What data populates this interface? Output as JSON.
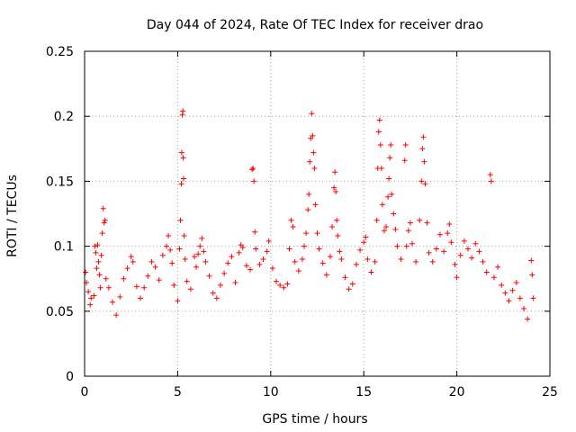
{
  "chart_data": {
    "type": "scatter",
    "title": "Day 044 of 2024, Rate Of TEC Index for receiver drao",
    "xlabel": "GPS time / hours",
    "ylabel": "ROTI / TECUs",
    "xlim": [
      0,
      25
    ],
    "ylim": [
      0,
      0.25
    ],
    "x_ticks": [
      "0",
      "5",
      "10",
      "15",
      "20",
      "25"
    ],
    "y_ticks": [
      "0",
      "0.05",
      "0.1",
      "0.15",
      "0.2",
      "0.25"
    ],
    "grid": true,
    "marker": "plus",
    "series_color": "#ff0000",
    "series": [
      {
        "points": [
          [
            0.05,
            0.08
          ],
          [
            0.1,
            0.072
          ],
          [
            0.2,
            0.065
          ],
          [
            0.3,
            0.055
          ],
          [
            0.35,
            0.06
          ],
          [
            0.5,
            0.062
          ],
          [
            0.55,
            0.1
          ],
          [
            0.6,
            0.095
          ],
          [
            0.65,
            0.083
          ],
          [
            0.7,
            0.101
          ],
          [
            0.75,
            0.088
          ],
          [
            0.8,
            0.078
          ],
          [
            0.85,
            0.068
          ],
          [
            0.9,
            0.093
          ],
          [
            0.95,
            0.11
          ],
          [
            1.0,
            0.129
          ],
          [
            1.05,
            0.118
          ],
          [
            1.1,
            0.12
          ],
          [
            1.15,
            0.075
          ],
          [
            1.3,
            0.068
          ],
          [
            1.5,
            0.057
          ],
          [
            1.7,
            0.047
          ],
          [
            1.9,
            0.061
          ],
          [
            2.1,
            0.075
          ],
          [
            2.3,
            0.083
          ],
          [
            2.5,
            0.092
          ],
          [
            2.6,
            0.088
          ],
          [
            2.8,
            0.069
          ],
          [
            3.0,
            0.06
          ],
          [
            3.2,
            0.068
          ],
          [
            3.4,
            0.077
          ],
          [
            3.6,
            0.088
          ],
          [
            3.8,
            0.084
          ],
          [
            4.0,
            0.074
          ],
          [
            4.2,
            0.093
          ],
          [
            4.4,
            0.1
          ],
          [
            4.5,
            0.108
          ],
          [
            4.6,
            0.097
          ],
          [
            4.7,
            0.087
          ],
          [
            4.8,
            0.07
          ],
          [
            5.0,
            0.058
          ],
          [
            5.1,
            0.098
          ],
          [
            5.15,
            0.12
          ],
          [
            5.2,
            0.148
          ],
          [
            5.22,
            0.172
          ],
          [
            5.25,
            0.201
          ],
          [
            5.28,
            0.204
          ],
          [
            5.3,
            0.168
          ],
          [
            5.32,
            0.152
          ],
          [
            5.35,
            0.108
          ],
          [
            5.4,
            0.09
          ],
          [
            5.5,
            0.073
          ],
          [
            5.7,
            0.067
          ],
          [
            5.9,
            0.092
          ],
          [
            6.0,
            0.084
          ],
          [
            6.1,
            0.094
          ],
          [
            6.2,
            0.1
          ],
          [
            6.3,
            0.106
          ],
          [
            6.4,
            0.096
          ],
          [
            6.5,
            0.088
          ],
          [
            6.7,
            0.077
          ],
          [
            6.9,
            0.064
          ],
          [
            7.1,
            0.06
          ],
          [
            7.3,
            0.07
          ],
          [
            7.5,
            0.079
          ],
          [
            7.7,
            0.087
          ],
          [
            7.9,
            0.092
          ],
          [
            8.1,
            0.072
          ],
          [
            8.3,
            0.095
          ],
          [
            8.4,
            0.101
          ],
          [
            8.5,
            0.099
          ],
          [
            8.7,
            0.085
          ],
          [
            8.9,
            0.082
          ],
          [
            9.0,
            0.159
          ],
          [
            9.05,
            0.16
          ],
          [
            9.1,
            0.15
          ],
          [
            9.15,
            0.111
          ],
          [
            9.2,
            0.098
          ],
          [
            9.4,
            0.086
          ],
          [
            9.6,
            0.09
          ],
          [
            9.8,
            0.096
          ],
          [
            9.9,
            0.104
          ],
          [
            10.1,
            0.083
          ],
          [
            10.3,
            0.073
          ],
          [
            10.5,
            0.07
          ],
          [
            10.7,
            0.068
          ],
          [
            10.9,
            0.071
          ],
          [
            11.0,
            0.098
          ],
          [
            11.1,
            0.12
          ],
          [
            11.2,
            0.115
          ],
          [
            11.3,
            0.088
          ],
          [
            11.5,
            0.081
          ],
          [
            11.7,
            0.09
          ],
          [
            11.8,
            0.1
          ],
          [
            11.9,
            0.11
          ],
          [
            12.0,
            0.128
          ],
          [
            12.05,
            0.14
          ],
          [
            12.1,
            0.165
          ],
          [
            12.15,
            0.183
          ],
          [
            12.2,
            0.202
          ],
          [
            12.25,
            0.185
          ],
          [
            12.3,
            0.172
          ],
          [
            12.35,
            0.16
          ],
          [
            12.4,
            0.132
          ],
          [
            12.5,
            0.11
          ],
          [
            12.6,
            0.098
          ],
          [
            12.8,
            0.087
          ],
          [
            13.0,
            0.078
          ],
          [
            13.2,
            0.092
          ],
          [
            13.3,
            0.115
          ],
          [
            13.4,
            0.145
          ],
          [
            13.45,
            0.157
          ],
          [
            13.5,
            0.142
          ],
          [
            13.55,
            0.12
          ],
          [
            13.6,
            0.108
          ],
          [
            13.7,
            0.096
          ],
          [
            13.8,
            0.09
          ],
          [
            14.0,
            0.076
          ],
          [
            14.2,
            0.067
          ],
          [
            14.4,
            0.071
          ],
          [
            14.6,
            0.086
          ],
          [
            14.8,
            0.097
          ],
          [
            15.0,
            0.103
          ],
          [
            15.1,
            0.107
          ],
          [
            15.2,
            0.09
          ],
          [
            15.4,
            0.08
          ],
          [
            15.6,
            0.088
          ],
          [
            15.7,
            0.12
          ],
          [
            15.75,
            0.16
          ],
          [
            15.8,
            0.188
          ],
          [
            15.85,
            0.197
          ],
          [
            15.9,
            0.178
          ],
          [
            15.95,
            0.16
          ],
          [
            16.0,
            0.132
          ],
          [
            16.1,
            0.112
          ],
          [
            16.2,
            0.115
          ],
          [
            16.3,
            0.138
          ],
          [
            16.35,
            0.152
          ],
          [
            16.4,
            0.168
          ],
          [
            16.45,
            0.178
          ],
          [
            16.5,
            0.14
          ],
          [
            16.6,
            0.125
          ],
          [
            16.7,
            0.113
          ],
          [
            16.8,
            0.1
          ],
          [
            17.0,
            0.09
          ],
          [
            17.2,
            0.166
          ],
          [
            17.25,
            0.178
          ],
          [
            17.3,
            0.1
          ],
          [
            17.4,
            0.112
          ],
          [
            17.5,
            0.118
          ],
          [
            17.6,
            0.102
          ],
          [
            17.8,
            0.088
          ],
          [
            18.0,
            0.12
          ],
          [
            18.1,
            0.15
          ],
          [
            18.15,
            0.175
          ],
          [
            18.2,
            0.184
          ],
          [
            18.25,
            0.165
          ],
          [
            18.3,
            0.148
          ],
          [
            18.4,
            0.118
          ],
          [
            18.5,
            0.095
          ],
          [
            18.7,
            0.088
          ],
          [
            18.9,
            0.098
          ],
          [
            19.1,
            0.109
          ],
          [
            19.3,
            0.096
          ],
          [
            19.5,
            0.11
          ],
          [
            19.6,
            0.117
          ],
          [
            19.7,
            0.103
          ],
          [
            19.9,
            0.086
          ],
          [
            20.0,
            0.076
          ],
          [
            20.2,
            0.093
          ],
          [
            20.4,
            0.104
          ],
          [
            20.6,
            0.098
          ],
          [
            20.8,
            0.091
          ],
          [
            21.0,
            0.102
          ],
          [
            21.2,
            0.096
          ],
          [
            21.4,
            0.088
          ],
          [
            21.6,
            0.08
          ],
          [
            21.8,
            0.155
          ],
          [
            21.85,
            0.15
          ],
          [
            22.0,
            0.076
          ],
          [
            22.2,
            0.084
          ],
          [
            22.4,
            0.07
          ],
          [
            22.6,
            0.064
          ],
          [
            22.8,
            0.058
          ],
          [
            23.0,
            0.066
          ],
          [
            23.2,
            0.072
          ],
          [
            23.4,
            0.06
          ],
          [
            23.6,
            0.052
          ],
          [
            23.8,
            0.044
          ],
          [
            24.0,
            0.089
          ],
          [
            24.05,
            0.078
          ],
          [
            24.1,
            0.06
          ]
        ]
      }
    ]
  }
}
